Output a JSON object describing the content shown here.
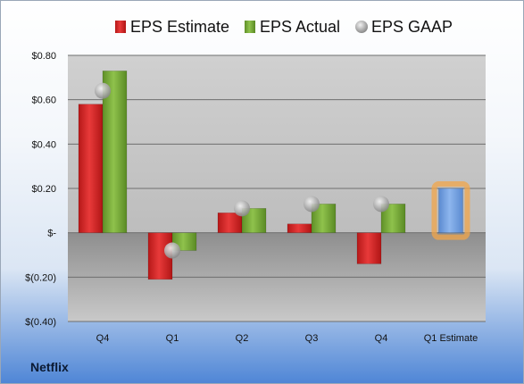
{
  "company": "Netflix",
  "colors": {
    "estimate": "#d42a2a",
    "actual": "#79ab3a",
    "gaap": "#b8b8b8",
    "future_estimate": "#6f9fe0",
    "future_glow": "#f2a54a"
  },
  "chart_data": {
    "type": "bar",
    "categories": [
      "Q4",
      "Q1",
      "Q2",
      "Q3",
      "Q4",
      "Q1 Estimate"
    ],
    "series": [
      {
        "name": "EPS Estimate",
        "values": [
          0.58,
          -0.21,
          0.09,
          0.04,
          -0.14,
          0.2
        ]
      },
      {
        "name": "EPS Actual",
        "values": [
          0.73,
          -0.08,
          0.11,
          0.13,
          0.13,
          null
        ]
      },
      {
        "name": "EPS GAAP",
        "values": [
          0.64,
          -0.08,
          0.11,
          0.13,
          0.13,
          null
        ]
      }
    ],
    "legend": [
      "EPS Estimate",
      "EPS Actual",
      "EPS GAAP"
    ],
    "legend_position": "top",
    "ylim": [
      -0.4,
      0.8
    ],
    "yticks": [
      0.8,
      0.6,
      0.4,
      0.2,
      0,
      -0.2,
      -0.4
    ],
    "ytick_labels": [
      "$0.80",
      "$0.60",
      "$0.40",
      "$0.20",
      "$-",
      "$(0.20)",
      "$(0.40)"
    ],
    "grid": true
  }
}
